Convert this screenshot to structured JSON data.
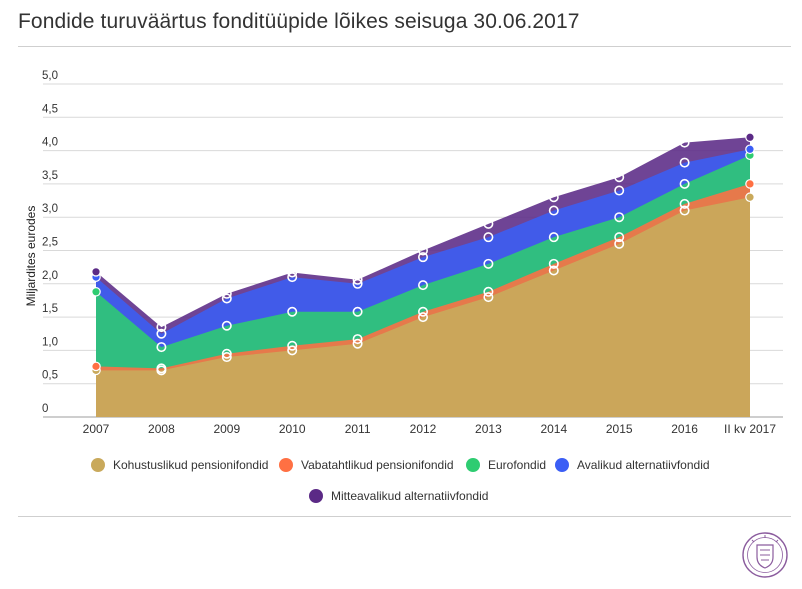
{
  "title": "Fondide turuväärtus fonditüüpide lõikes seisuga 30.06.2017",
  "chart_data": {
    "type": "area",
    "stacked": false,
    "title": "Fondide turuväärtus fonditüüpide lõikes seisuga 30.06.2017",
    "xlabel": "",
    "ylabel": "Miljardites eurodes",
    "categories": [
      "2007",
      "2008",
      "2009",
      "2010",
      "2011",
      "2012",
      "2013",
      "2014",
      "2015",
      "2016",
      "II kv 2017"
    ],
    "y_ticks": [
      "0",
      "0,5",
      "1,0",
      "1,5",
      "2,0",
      "2,5",
      "3,0",
      "3,5",
      "4,0",
      "4,5",
      "5,0"
    ],
    "ylim": [
      0,
      5
    ],
    "grid": true,
    "legend_position": "bottom",
    "series": [
      {
        "name": "Kohustuslikud pensionifondid",
        "color": "#C9A95B",
        "values": [
          0.7,
          0.7,
          0.9,
          1.0,
          1.1,
          1.5,
          1.8,
          2.2,
          2.6,
          3.1,
          3.3
        ]
      },
      {
        "name": "Vabatahtlikud pensionifondid",
        "color": "#FF7043",
        "values": [
          0.76,
          0.73,
          0.95,
          1.07,
          1.17,
          1.58,
          1.88,
          2.3,
          2.7,
          3.2,
          3.5
        ]
      },
      {
        "name": "Eurofondid",
        "color": "#2ECC71",
        "values": [
          1.88,
          1.05,
          1.37,
          1.58,
          1.58,
          1.98,
          2.3,
          2.7,
          3.0,
          3.5,
          3.93
        ]
      },
      {
        "name": "Avalikud alternatiivfondid",
        "color": "#3B5EF5",
        "values": [
          2.1,
          1.25,
          1.78,
          2.1,
          2.0,
          2.4,
          2.7,
          3.1,
          3.4,
          3.82,
          4.02
        ]
      },
      {
        "name": "Mitteavalikud alternatiivfondid",
        "color": "#5B2A86",
        "values": [
          2.18,
          1.35,
          1.85,
          2.17,
          2.06,
          2.5,
          2.9,
          3.3,
          3.6,
          4.12,
          4.2
        ]
      }
    ]
  }
}
